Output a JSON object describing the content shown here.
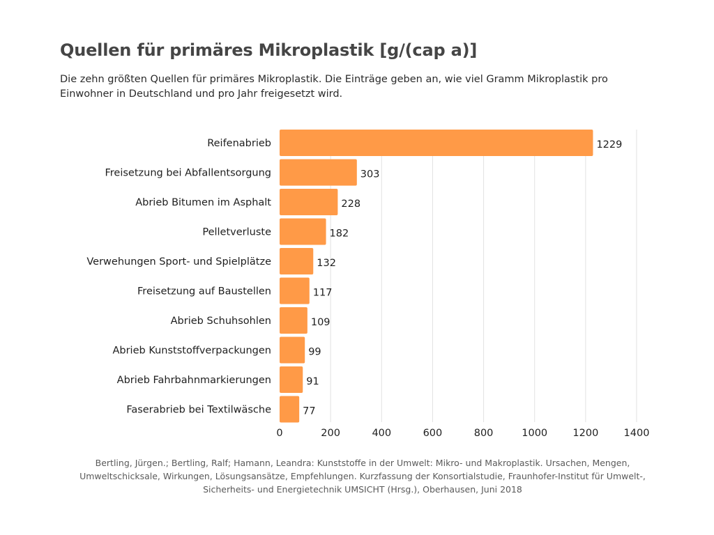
{
  "header": {
    "title": "Quellen für primäres Mikroplastik [g/(cap a)]",
    "subtitle": "Die zehn größten Quellen für primäres Mikroplastik. Die Einträge geben an, wie viel Gramm Mikroplastik pro Einwohner in Deutschland und pro Jahr freigesetzt wird."
  },
  "source": "Bertling, Jürgen.; Bertling, Ralf; Hamann, Leandra: Kunststoffe in der Umwelt: Mikro- und Makroplastik. Ursachen, Mengen, Umweltschicksale, Wirkungen, Lösungsansätze, Empfehlungen. Kurzfassung der Konsortialstudie, Fraunhofer-Institut für Umwelt-, Sicherheits- und Energietechnik UMSICHT (Hrsg.), Oberhausen, Juni 2018",
  "chart_data": {
    "type": "bar",
    "orientation": "horizontal",
    "title": "Quellen für primäres Mikroplastik [g/(cap a)]",
    "xlabel": "",
    "ylabel": "",
    "categories": [
      "Reifenabrieb",
      "Freisetzung bei Abfallentsorgung",
      "Abrieb Bitumen im Asphalt",
      "Pelletverluste",
      "Verwehungen Sport- und Spielplätze",
      "Freisetzung auf Baustellen",
      "Abrieb Schuhsohlen",
      "Abrieb Kunststoffverpackungen",
      "Abrieb Fahrbahnmarkierungen",
      "Faserabrieb bei Textilwäsche"
    ],
    "values": [
      1229,
      303,
      228,
      182,
      132,
      117,
      109,
      99,
      91,
      77
    ],
    "data_labels": [
      "1229",
      "303",
      "228",
      "182",
      "132",
      "117",
      "109",
      "99",
      "91",
      "77"
    ],
    "xlim": [
      0,
      1400
    ],
    "xticks": [
      0,
      200,
      400,
      600,
      800,
      1000,
      1200,
      1400
    ],
    "xtick_labels": [
      "0",
      "200",
      "400",
      "600",
      "800",
      "1000",
      "1200",
      "1400"
    ],
    "grid": "vertical",
    "legend": "none",
    "colors": {
      "bar": "#ff9a47",
      "grid": "#e2e2e2",
      "text": "#1e1e1e"
    }
  }
}
